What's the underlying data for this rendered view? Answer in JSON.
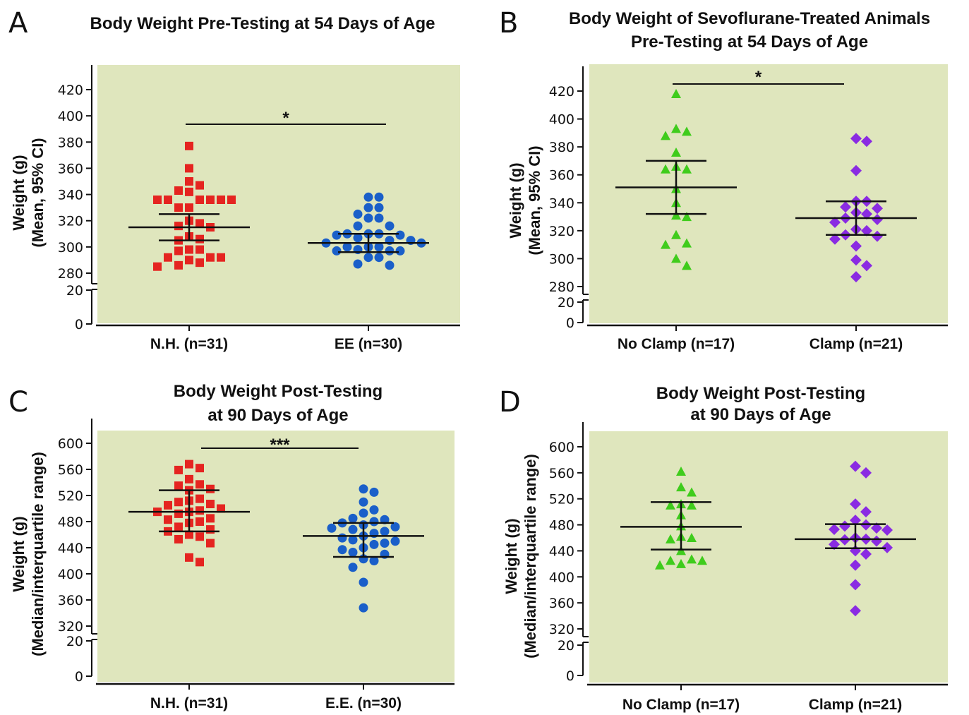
{
  "colors": {
    "background": "#dfe6bd",
    "nh": "#e52420",
    "ee": "#1a5fc9",
    "no_clamp": "#3fcc1c",
    "clamp": "#8a2be2",
    "axis": "#111111"
  },
  "chart_data": [
    {
      "panel": "A",
      "type": "scatter",
      "title": [
        "Body Weight Pre-Testing at 54 Days of Age"
      ],
      "ylabel": [
        "Weight (g)",
        "(Mean, 95% CI)"
      ],
      "yticks": [
        420,
        400,
        380,
        360,
        340,
        320,
        300,
        280,
        20,
        0
      ],
      "axis_break": {
        "lower_range": [
          0,
          20
        ],
        "upper_range": [
          280,
          420
        ]
      },
      "grid": false,
      "significance": "*",
      "series": [
        {
          "name": "N.H. (n=31)",
          "marker": "square",
          "color": "#e52420",
          "values": [
            377,
            360,
            350,
            347,
            343,
            342,
            336,
            336,
            336,
            336,
            336,
            336,
            330,
            330,
            320,
            318,
            316,
            315,
            308,
            306,
            305,
            298,
            298,
            297,
            292,
            292,
            292,
            290,
            288,
            286,
            285
          ],
          "summary": {
            "center": 315,
            "lower": 305,
            "upper": 325
          }
        },
        {
          "name": "EE (n=30)",
          "marker": "circle",
          "color": "#1a5fc9",
          "values": [
            338,
            338,
            330,
            330,
            325,
            322,
            322,
            316,
            316,
            310,
            310,
            310,
            309,
            309,
            307,
            305,
            305,
            303,
            303,
            300,
            300,
            300,
            298,
            297,
            297,
            297,
            292,
            292,
            287,
            286
          ],
          "summary": {
            "center": 303,
            "lower": 296,
            "upper": 310
          }
        }
      ]
    },
    {
      "panel": "B",
      "type": "scatter",
      "title": [
        "Body Weight of Sevoflurane-Treated Animals",
        "Pre-Testing at 54 Days of Age"
      ],
      "ylabel": [
        "Weight (g)",
        "(Mean, 95% CI)"
      ],
      "yticks": [
        420,
        400,
        380,
        360,
        340,
        320,
        300,
        280,
        20,
        0
      ],
      "axis_break": {
        "lower_range": [
          0,
          20
        ],
        "upper_range": [
          280,
          420
        ]
      },
      "grid": false,
      "significance": "*",
      "series": [
        {
          "name": "No Clamp (n=17)",
          "marker": "triangle",
          "color": "#3fcc1c",
          "values": [
            418,
            393,
            391,
            388,
            376,
            366,
            364,
            364,
            350,
            340,
            331,
            317,
            311,
            310,
            300,
            295,
            330
          ],
          "summary": {
            "center": 351,
            "lower": 332,
            "upper": 370
          }
        },
        {
          "name": "Clamp  (n=21)",
          "marker": "diamond",
          "color": "#8a2be2",
          "values": [
            386,
            384,
            363,
            341,
            341,
            337,
            336,
            333,
            332,
            329,
            328,
            326,
            321,
            320,
            317,
            316,
            314,
            309,
            299,
            295,
            287
          ],
          "summary": {
            "center": 329,
            "lower": 317,
            "upper": 341
          }
        }
      ]
    },
    {
      "panel": "C",
      "type": "scatter",
      "title": [
        "Body Weight Post-Testing",
        "at 90 Days of Age"
      ],
      "ylabel": [
        "Weight (g)",
        "(Median/interquartile range)"
      ],
      "yticks": [
        600,
        560,
        520,
        480,
        440,
        400,
        360,
        320,
        20,
        0
      ],
      "axis_break": {
        "lower_range": [
          0,
          20
        ],
        "upper_range": [
          320,
          600
        ]
      },
      "grid": false,
      "significance": "***",
      "series": [
        {
          "name": "N.H. (n=31)",
          "marker": "square",
          "color": "#e52420",
          "values": [
            568,
            562,
            559,
            545,
            537,
            535,
            530,
            528,
            515,
            512,
            510,
            507,
            505,
            500,
            497,
            495,
            495,
            492,
            485,
            483,
            480,
            478,
            472,
            468,
            465,
            460,
            457,
            453,
            447,
            425,
            418
          ],
          "summary": {
            "center": 495,
            "lower": 465,
            "upper": 528
          }
        },
        {
          "name": "E.E. (n=30)",
          "marker": "circle",
          "color": "#1a5fc9",
          "values": [
            530,
            525,
            510,
            498,
            493,
            485,
            483,
            480,
            478,
            475,
            472,
            470,
            468,
            465,
            462,
            458,
            455,
            452,
            450,
            447,
            445,
            440,
            437,
            433,
            430,
            423,
            420,
            410,
            387,
            348
          ],
          "summary": {
            "center": 458,
            "lower": 426,
            "upper": 478
          }
        }
      ]
    },
    {
      "panel": "D",
      "type": "scatter",
      "title": [
        "Body Weight Post-Testing",
        "at 90 Days of Age"
      ],
      "ylabel": [
        "Weight (g)",
        "(Median/interquartile range)"
      ],
      "yticks": [
        600,
        560,
        520,
        480,
        440,
        400,
        360,
        320,
        20,
        0
      ],
      "axis_break": {
        "lower_range": [
          0,
          20
        ],
        "upper_range": [
          320,
          600
        ]
      },
      "grid": false,
      "significance": "",
      "series": [
        {
          "name": "No Clamp (n=17)",
          "marker": "triangle",
          "color": "#3fcc1c",
          "values": [
            562,
            538,
            530,
            512,
            510,
            510,
            495,
            478,
            462,
            460,
            458,
            440,
            427,
            425,
            425,
            420,
            418
          ],
          "summary": {
            "center": 477,
            "lower": 442,
            "upper": 515
          }
        },
        {
          "name": "Clamp  (n=21)",
          "marker": "diamond",
          "color": "#8a2be2",
          "values": [
            570,
            560,
            512,
            500,
            487,
            480,
            478,
            475,
            473,
            472,
            460,
            458,
            457,
            455,
            450,
            445,
            440,
            435,
            418,
            388,
            348
          ],
          "summary": {
            "center": 458,
            "lower": 444,
            "upper": 481
          }
        }
      ]
    }
  ]
}
